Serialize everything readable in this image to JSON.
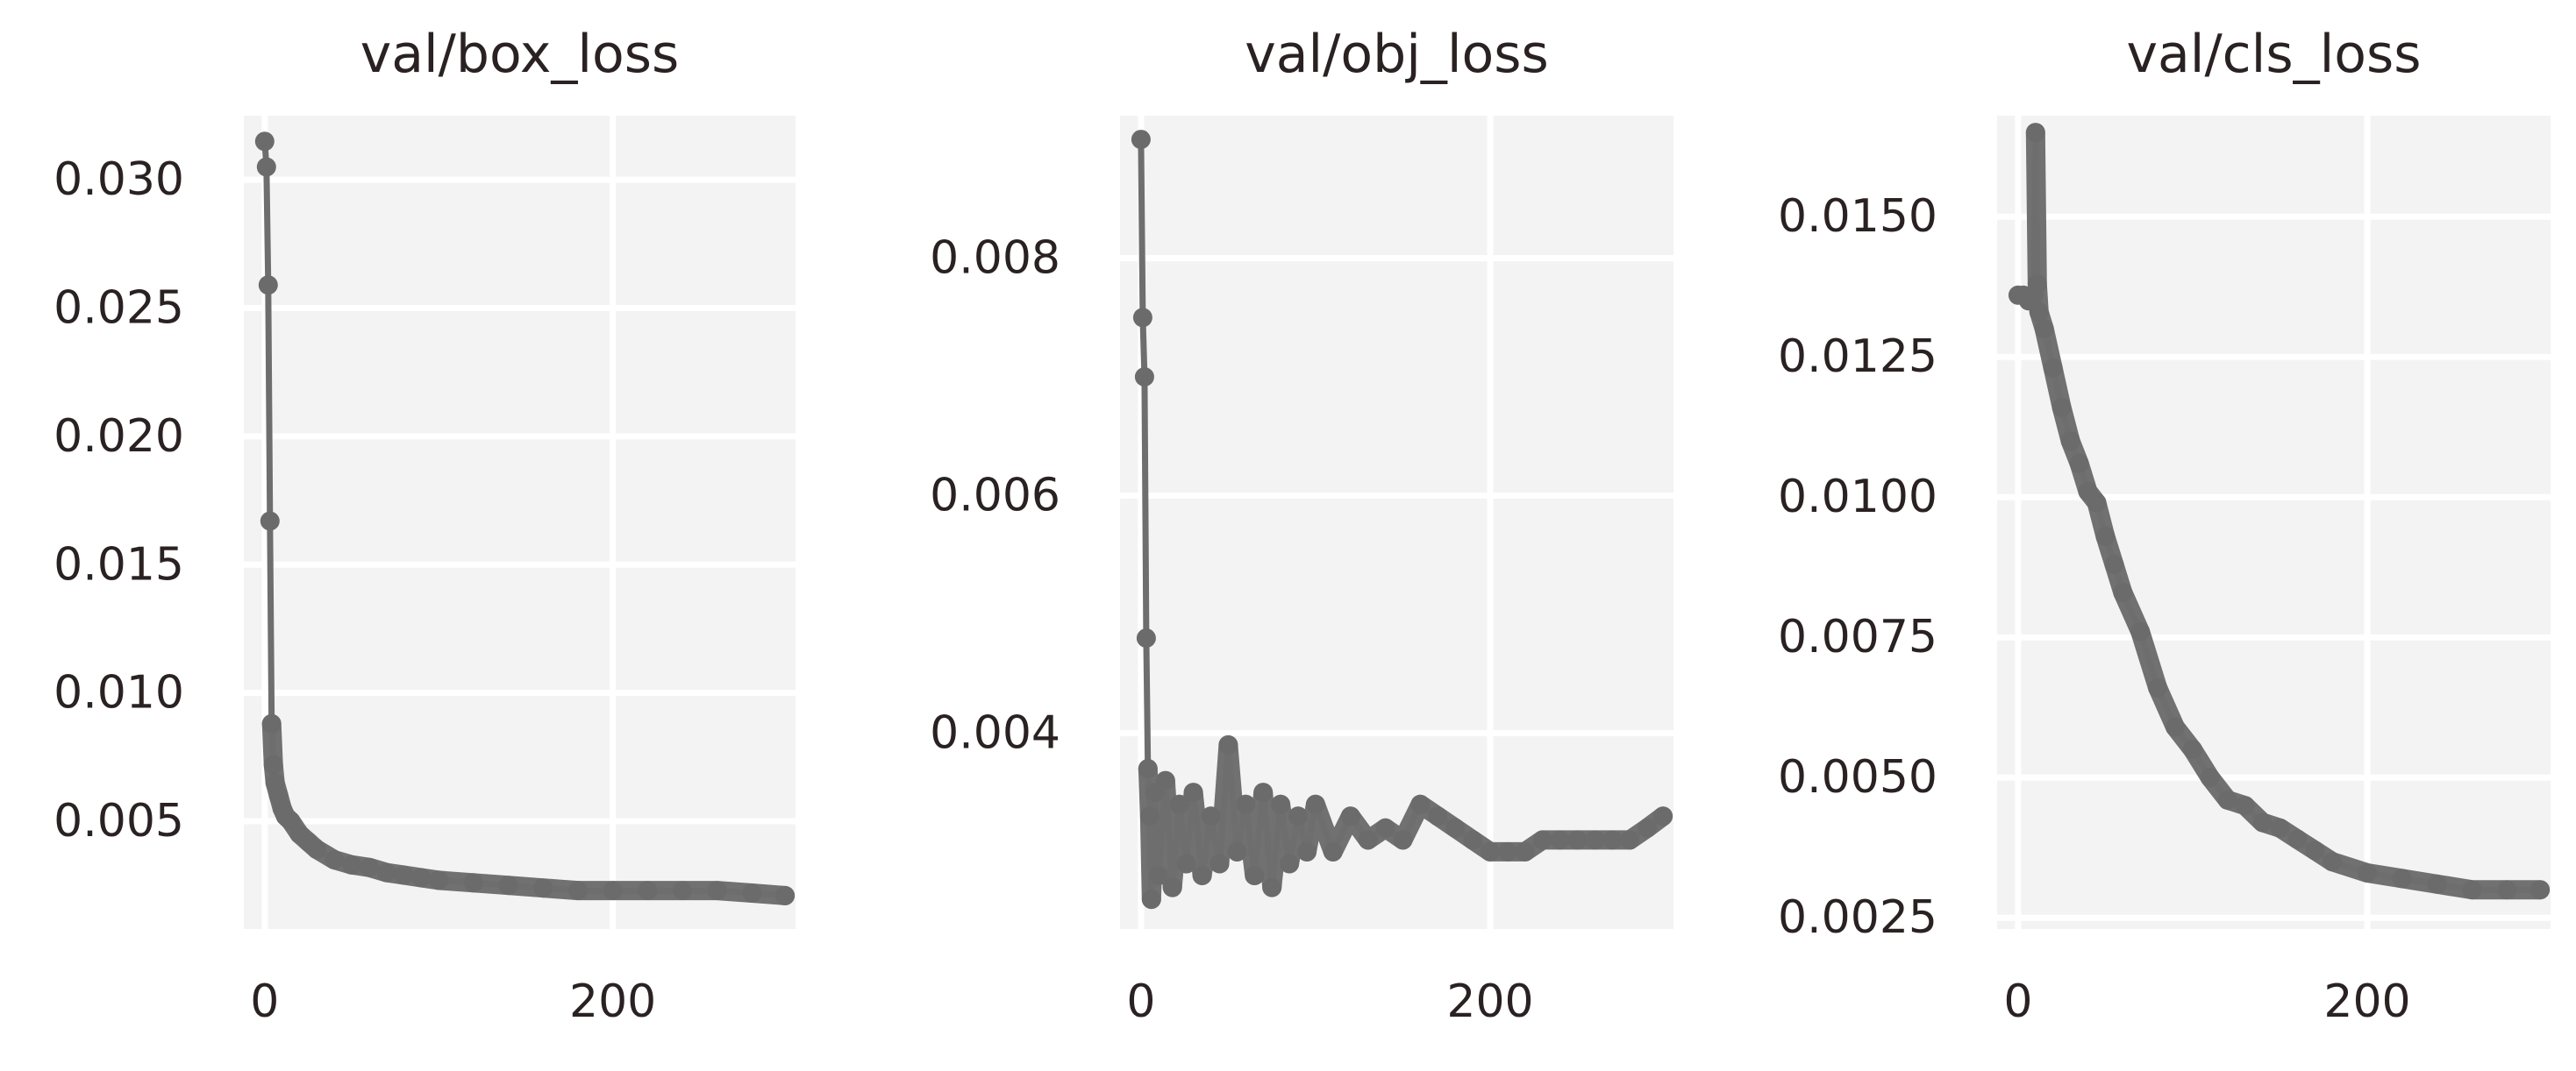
{
  "chart_data": [
    {
      "type": "line",
      "title": "val/box_loss",
      "xlabel": "",
      "ylabel": "",
      "xlim": [
        -12,
        305
      ],
      "ylim": [
        0.0008,
        0.0325
      ],
      "xticks": [
        0,
        200
      ],
      "xtick_labels": [
        "0",
        "200"
      ],
      "yticks": [
        0.005,
        0.01,
        0.015,
        0.02,
        0.025,
        0.03
      ],
      "ytick_labels": [
        "0.005",
        "0.010",
        "0.015",
        "0.020",
        "0.025",
        "0.030"
      ],
      "grid": true,
      "series": [
        {
          "x": [
            0,
            1,
            2,
            3,
            4,
            5,
            6,
            8,
            10,
            12,
            15,
            20,
            25,
            30,
            40,
            50,
            60,
            70,
            80,
            90,
            100,
            120,
            140,
            160,
            180,
            200,
            220,
            240,
            260,
            280,
            299
          ],
          "y": [
            0.0315,
            0.0305,
            0.0259,
            0.0167,
            0.0088,
            0.0072,
            0.0065,
            0.006,
            0.0055,
            0.0052,
            0.005,
            0.0045,
            0.0042,
            0.0039,
            0.0035,
            0.0033,
            0.0032,
            0.003,
            0.0029,
            0.0028,
            0.0027,
            0.0026,
            0.0025,
            0.0024,
            0.0023,
            0.0023,
            0.0023,
            0.0023,
            0.0023,
            0.0022,
            0.0021
          ]
        }
      ]
    },
    {
      "type": "line",
      "title": "val/obj_loss",
      "xlabel": "",
      "ylabel": "",
      "xlim": [
        -12,
        305
      ],
      "ylim": [
        0.00235,
        0.0092
      ],
      "xticks": [
        0,
        200
      ],
      "xtick_labels": [
        "0",
        "200"
      ],
      "yticks": [
        0.004,
        0.006,
        0.008
      ],
      "ytick_labels": [
        "0.004",
        "0.006",
        "0.008"
      ],
      "grid": true,
      "series": [
        {
          "x": [
            0,
            1,
            2,
            3,
            4,
            5,
            6,
            8,
            10,
            14,
            18,
            22,
            26,
            30,
            35,
            40,
            45,
            50,
            55,
            60,
            65,
            70,
            75,
            80,
            85,
            90,
            95,
            100,
            110,
            120,
            130,
            140,
            150,
            160,
            170,
            180,
            190,
            200,
            210,
            220,
            230,
            240,
            250,
            260,
            270,
            280,
            290,
            299
          ],
          "y": [
            0.009,
            0.0075,
            0.007,
            0.0048,
            0.0037,
            0.0033,
            0.0026,
            0.0035,
            0.0028,
            0.0036,
            0.0027,
            0.0034,
            0.0029,
            0.0035,
            0.0028,
            0.0033,
            0.0029,
            0.0039,
            0.003,
            0.0034,
            0.0028,
            0.0035,
            0.0027,
            0.0034,
            0.0029,
            0.0033,
            0.003,
            0.0034,
            0.003,
            0.0033,
            0.0031,
            0.0032,
            0.0031,
            0.0034,
            0.0033,
            0.0032,
            0.0031,
            0.003,
            0.003,
            0.003,
            0.0031,
            0.0031,
            0.0031,
            0.0031,
            0.0031,
            0.0031,
            0.0032,
            0.0033
          ]
        }
      ]
    },
    {
      "type": "line",
      "title": "val/cls_loss",
      "xlabel": "",
      "ylabel": "",
      "xlim": [
        -12,
        305
      ],
      "ylim": [
        0.0023,
        0.0168
      ],
      "xticks": [
        0,
        200
      ],
      "xtick_labels": [
        "0",
        "200"
      ],
      "yticks": [
        0.0025,
        0.005,
        0.0075,
        0.01,
        0.0125,
        0.015
      ],
      "ytick_labels": [
        "0.0025",
        "0.0050",
        "0.0075",
        "0.0100",
        "0.0125",
        "0.0150"
      ],
      "grid": true,
      "series": [
        {
          "x": [
            0,
            3,
            6,
            9,
            10,
            11,
            12,
            15,
            20,
            25,
            30,
            35,
            40,
            45,
            50,
            55,
            60,
            70,
            80,
            90,
            100,
            110,
            120,
            130,
            140,
            150,
            160,
            170,
            180,
            200,
            220,
            240,
            260,
            280,
            299
          ],
          "y": [
            0.0136,
            0.0136,
            0.0135,
            0.0136,
            0.0165,
            0.0138,
            0.0133,
            0.013,
            0.0123,
            0.0116,
            0.011,
            0.0106,
            0.0101,
            0.0099,
            0.0093,
            0.0088,
            0.0083,
            0.0076,
            0.0066,
            0.0059,
            0.0055,
            0.005,
            0.0046,
            0.0045,
            0.0042,
            0.0041,
            0.0039,
            0.0037,
            0.0035,
            0.0033,
            0.0032,
            0.0031,
            0.003,
            0.003,
            0.003
          ]
        }
      ]
    }
  ]
}
